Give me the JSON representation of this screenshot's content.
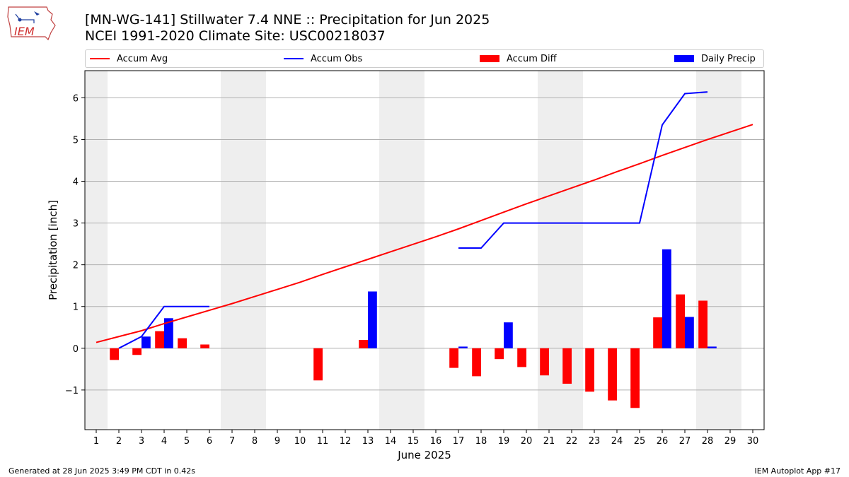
{
  "header": {
    "title_line1": "[MN-WG-141] Stillwater 7.4 NNE :: Precipitation for Jun 2025",
    "title_line2": "NCEI 1991-2020 Climate Site: USC00218037",
    "logo_text": "IEM"
  },
  "footer": {
    "generated": "Generated at 28 Jun 2025 3:49 PM CDT in 0.42s",
    "app": "IEM Autoplot App #17"
  },
  "colors": {
    "accum_avg": "#ff0000",
    "accum_obs": "#0000ff",
    "accum_diff": "#ff0000",
    "daily_precip": "#0000ff",
    "weekend_shade": "#eeeeee",
    "grid": "#b0b0b0"
  },
  "chart_data": {
    "type": "bar",
    "xlabel": "June 2025",
    "ylabel": "Precipitation [inch]",
    "x": [
      1,
      2,
      3,
      4,
      5,
      6,
      7,
      8,
      9,
      10,
      11,
      12,
      13,
      14,
      15,
      16,
      17,
      18,
      19,
      20,
      21,
      22,
      23,
      24,
      25,
      26,
      27,
      28,
      29,
      30
    ],
    "x_tick_labels": [
      "1",
      "2",
      "3",
      "4",
      "5",
      "6",
      "7",
      "8",
      "9",
      "10",
      "11",
      "12",
      "13",
      "14",
      "15",
      "16",
      "17",
      "18",
      "19",
      "20",
      "21",
      "22",
      "23",
      "24",
      "25",
      "26",
      "27",
      "28",
      "29",
      "30"
    ],
    "xlim": [
      0.5,
      30.5
    ],
    "ylim": [
      -1.95,
      6.65
    ],
    "y_ticks": [
      -1,
      0,
      1,
      2,
      3,
      4,
      5,
      6
    ],
    "y_tick_labels": [
      "−1",
      "0",
      "1",
      "2",
      "3",
      "4",
      "5",
      "6"
    ],
    "grid": "y",
    "weekend_days": [
      1,
      7,
      8,
      14,
      15,
      21,
      22,
      28,
      29
    ],
    "legend": {
      "placement": "top",
      "entries": [
        {
          "label": "Accum Avg",
          "kind": "line",
          "series": "accum_avg"
        },
        {
          "label": "Accum Obs",
          "kind": "line",
          "series": "accum_obs"
        },
        {
          "label": "Accum Diff",
          "kind": "bar",
          "series": "accum_diff"
        },
        {
          "label": "Daily Precip",
          "kind": "bar",
          "series": "daily_precip"
        }
      ]
    },
    "series": [
      {
        "name": "Accum Avg",
        "key": "accum_avg",
        "type": "line",
        "x": [
          1,
          2,
          3,
          4,
          5,
          6,
          7,
          8,
          9,
          10,
          11,
          12,
          13,
          14,
          15,
          16,
          17,
          18,
          19,
          20,
          21,
          22,
          23,
          24,
          25,
          26,
          27,
          28,
          29,
          30
        ],
        "values": [
          0.14,
          0.28,
          0.42,
          0.59,
          0.75,
          0.91,
          1.07,
          1.24,
          1.41,
          1.58,
          1.77,
          1.95,
          2.13,
          2.31,
          2.49,
          2.67,
          2.86,
          3.06,
          3.26,
          3.46,
          3.65,
          3.84,
          4.03,
          4.23,
          4.42,
          4.62,
          4.81,
          5.0,
          5.18,
          5.36
        ]
      },
      {
        "name": "Accum Obs",
        "key": "accum_obs",
        "type": "line",
        "segments": [
          {
            "x": [
              2,
              3,
              4,
              5,
              6
            ],
            "values": [
              0.0,
              0.28,
              1.0,
              1.0,
              1.0
            ]
          },
          {
            "x": [
              17,
              18,
              19,
              20,
              21,
              22,
              23,
              24,
              25,
              26,
              27,
              28
            ],
            "values": [
              2.4,
              2.4,
              3.0,
              3.0,
              3.0,
              3.0,
              3.0,
              3.0,
              3.0,
              5.35,
              6.1,
              6.14
            ]
          }
        ]
      },
      {
        "name": "Accum Diff",
        "key": "accum_diff",
        "type": "bar",
        "x": [
          2,
          3,
          4,
          5,
          6,
          11,
          13,
          17,
          18,
          19,
          20,
          21,
          22,
          23,
          24,
          25,
          26,
          27,
          28
        ],
        "values": [
          -0.28,
          -0.16,
          0.41,
          0.24,
          0.09,
          -0.77,
          0.2,
          -0.47,
          -0.67,
          -0.26,
          -0.45,
          -0.65,
          -0.85,
          -1.04,
          -1.25,
          -1.43,
          0.74,
          1.29,
          1.14
        ]
      },
      {
        "name": "Daily Precip",
        "key": "daily_precip",
        "type": "bar",
        "x": [
          3,
          4,
          13,
          17,
          19,
          26,
          27,
          28
        ],
        "values": [
          0.28,
          0.72,
          1.36,
          0.04,
          0.62,
          2.37,
          0.75,
          0.04
        ]
      }
    ]
  }
}
